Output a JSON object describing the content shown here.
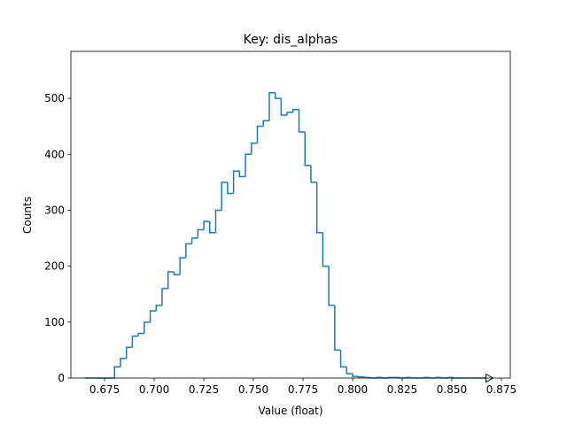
{
  "chart_data": {
    "type": "histogram",
    "title": "Key: dis_alphas",
    "x_label": "Value (float)",
    "y_label": "Counts",
    "color": "#1f77b4",
    "bins": [
      0.665,
      0.668,
      0.671,
      0.674,
      0.677,
      0.68,
      0.683,
      0.686,
      0.689,
      0.692,
      0.695,
      0.698,
      0.701,
      0.704,
      0.707,
      0.71,
      0.713,
      0.716,
      0.719,
      0.722,
      0.725,
      0.728,
      0.731,
      0.734,
      0.737,
      0.74,
      0.743,
      0.746,
      0.749,
      0.752,
      0.755,
      0.758,
      0.761,
      0.764,
      0.767,
      0.77,
      0.773,
      0.776,
      0.779,
      0.782,
      0.785,
      0.788,
      0.791,
      0.794,
      0.797,
      0.8,
      0.803,
      0.806,
      0.809,
      0.812,
      0.815,
      0.818,
      0.821,
      0.824,
      0.827,
      0.83,
      0.833,
      0.836,
      0.839,
      0.842,
      0.845,
      0.848,
      0.851,
      0.854,
      0.857,
      0.86,
      0.863,
      0.866,
      0.869
    ],
    "values": [
      0,
      0,
      0,
      0,
      0,
      20,
      35,
      55,
      75,
      80,
      100,
      120,
      130,
      160,
      190,
      185,
      215,
      240,
      250,
      265,
      280,
      260,
      300,
      350,
      330,
      370,
      360,
      400,
      420,
      450,
      460,
      510,
      500,
      470,
      475,
      480,
      440,
      380,
      350,
      260,
      200,
      130,
      50,
      20,
      8,
      3,
      2,
      1,
      0,
      1,
      0,
      1,
      1,
      0,
      1,
      0,
      0,
      1,
      0,
      1,
      0,
      1,
      0,
      0,
      0,
      0,
      0,
      0
    ],
    "xlim": [
      0.658,
      0.8795
    ],
    "ylim": [
      0,
      584
    ],
    "xticks": [
      0.675,
      {
        "value": 0.7,
        "label": "0.700"
      },
      0.725,
      {
        "value": 0.75,
        "label": "0.750"
      },
      0.775,
      {
        "value": 0.8,
        "label": "0.800"
      },
      0.825,
      {
        "value": 0.85,
        "label": "0.850"
      },
      0.875
    ],
    "yticks": [
      0,
      100,
      200,
      300,
      400,
      500
    ],
    "grid": false
  }
}
